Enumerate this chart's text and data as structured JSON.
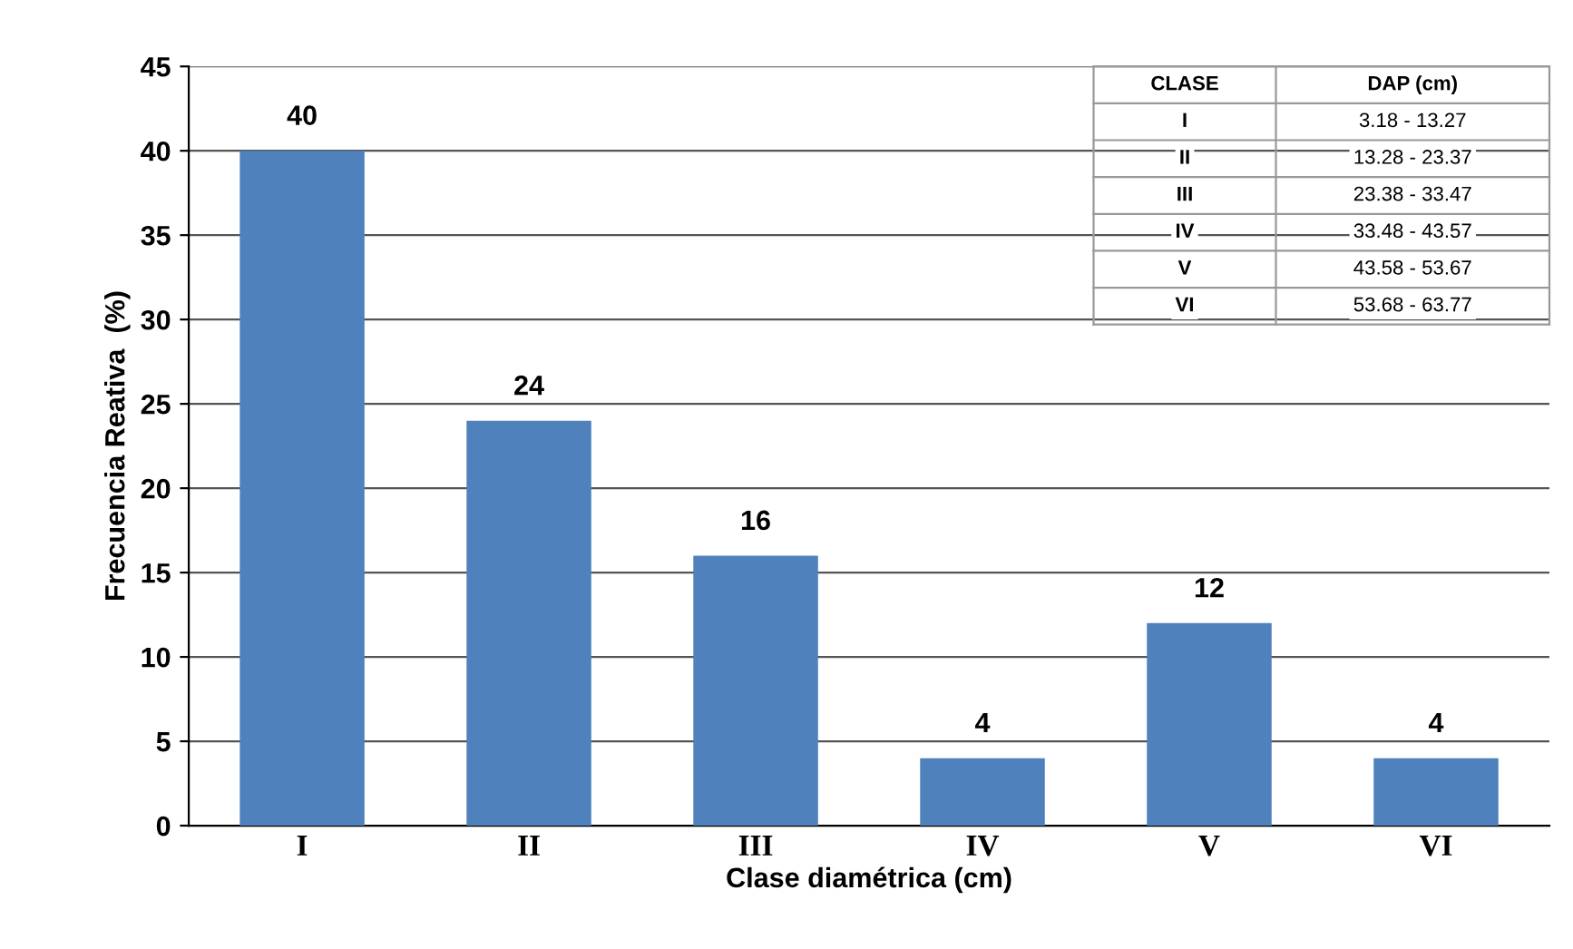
{
  "chart_data": {
    "type": "bar",
    "categories": [
      "I",
      "II",
      "III",
      "IV",
      "V",
      "VI"
    ],
    "values": [
      40,
      24,
      16,
      4,
      12,
      4
    ],
    "color": "#4f81bd",
    "xlabel": "Clase diamétrica (cm)",
    "ylabel": "Frecuencia Reativa  (%)",
    "ylim": [
      0,
      45
    ],
    "yticks": [
      0,
      5,
      10,
      15,
      20,
      25,
      30,
      35,
      40,
      45
    ],
    "grid": "y",
    "data_labels": true,
    "annotations": [
      "CLASE",
      "DAP (cm)",
      "I",
      "3.18 - 13.27",
      "II",
      "13.28 - 23.37",
      "III",
      "23.38 - 33.47",
      "IV",
      "33.48 - 43.57",
      "V",
      "43.58 - 53.67",
      "VI",
      "53.68 - 63.77"
    ]
  }
}
